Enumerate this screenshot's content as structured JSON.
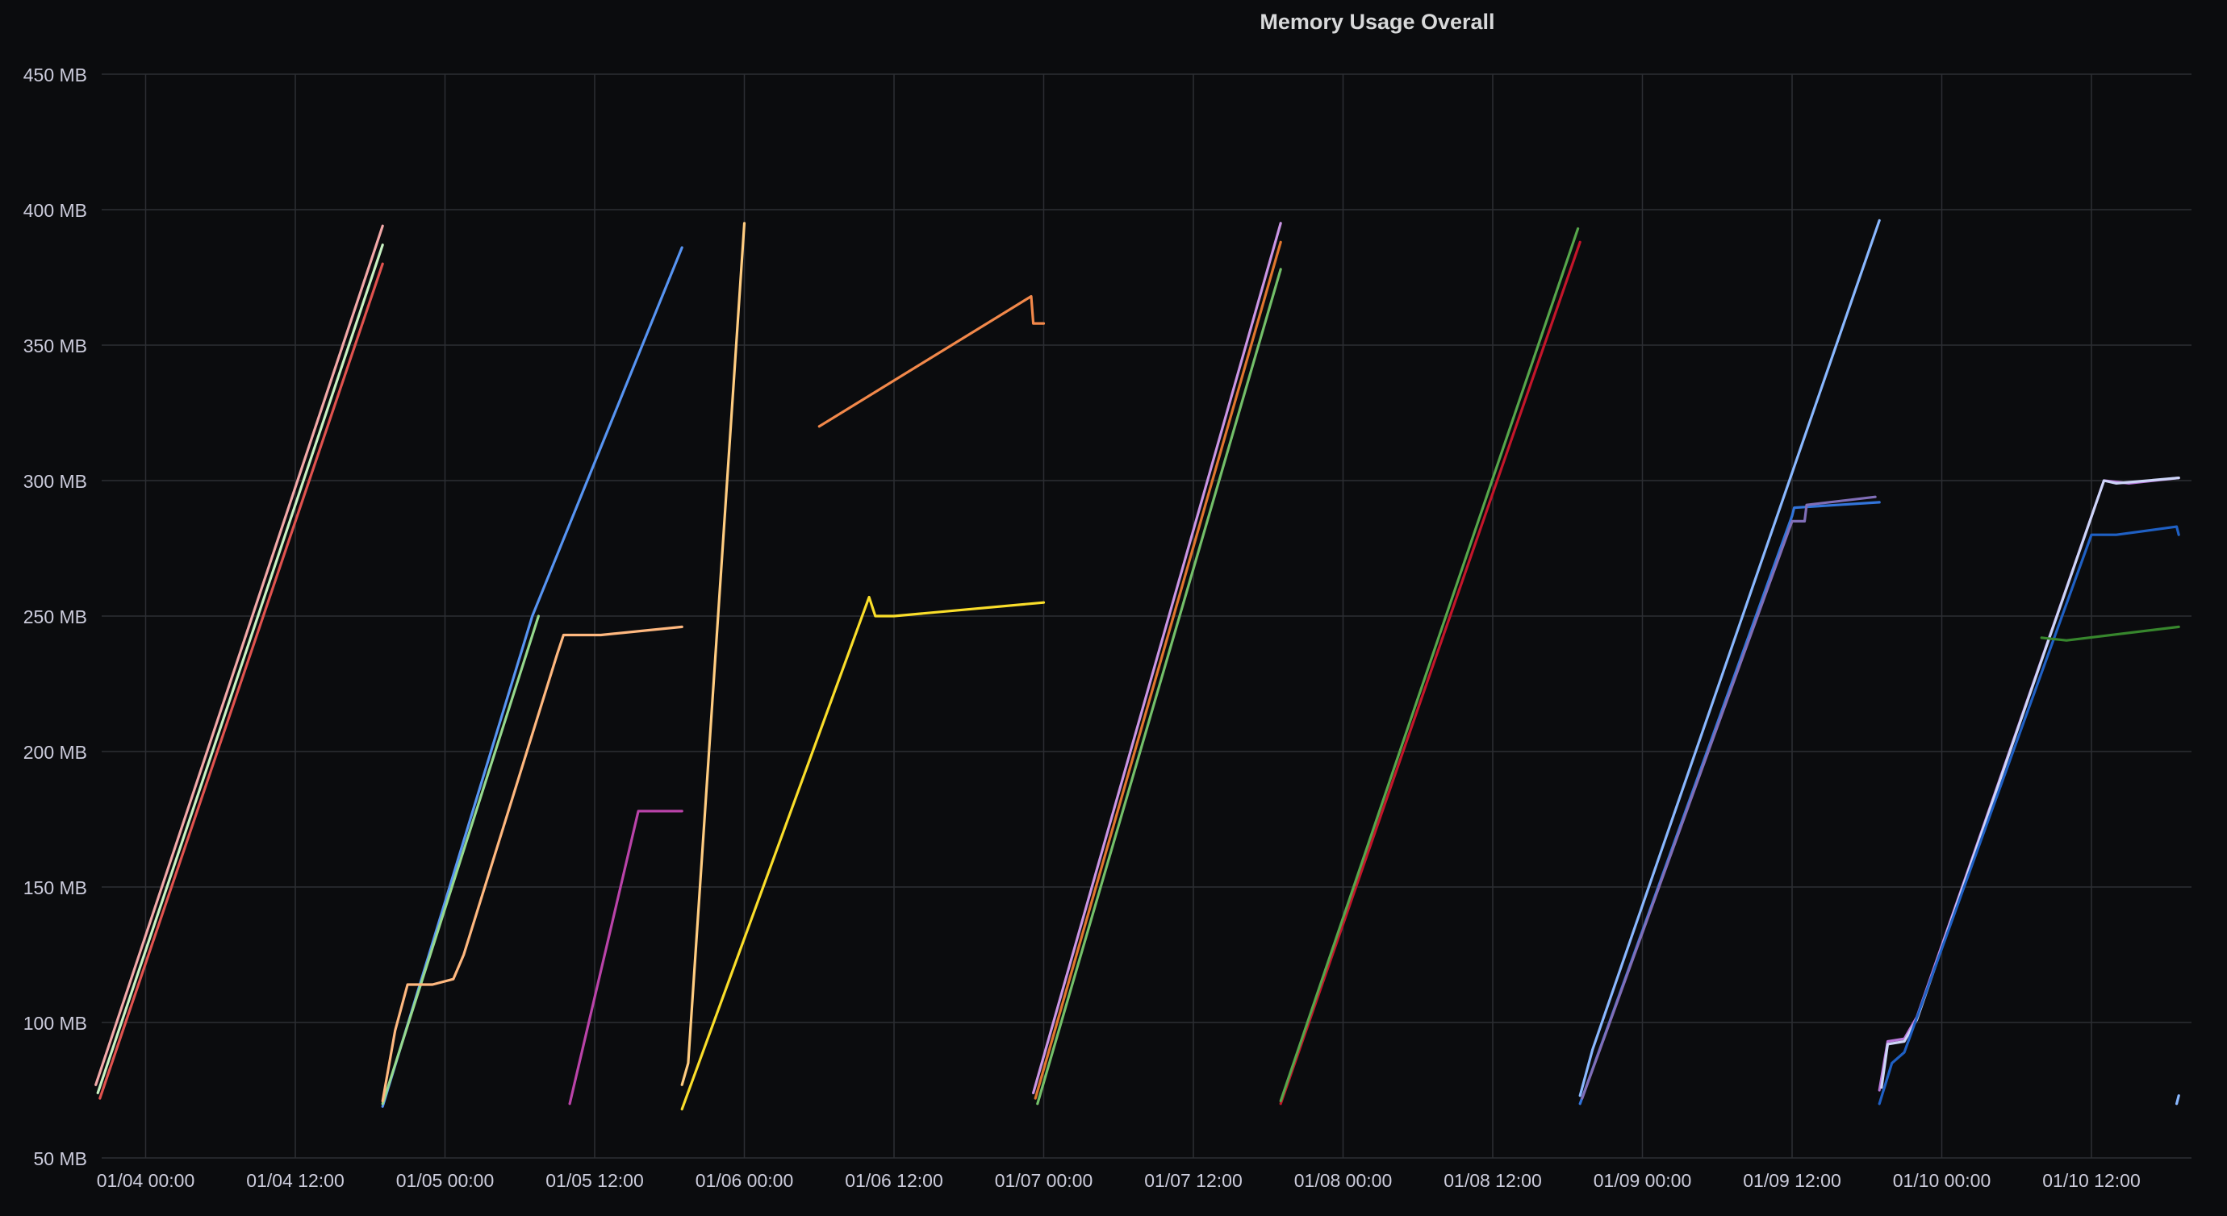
{
  "panel": {
    "title": "Memory Usage Overall"
  },
  "chart_data": {
    "type": "line",
    "title": "Memory Usage Overall",
    "xlabel": "",
    "ylabel": "",
    "y_unit": "MB",
    "ylim": [
      50,
      450
    ],
    "xlim": [
      "01/04 00:00",
      "01/10 12:00"
    ],
    "grid": true,
    "legend": "none",
    "x_tick_labels": [
      "01/04 00:00",
      "01/04 12:00",
      "01/05 00:00",
      "01/05 12:00",
      "01/06 00:00",
      "01/06 12:00",
      "01/07 00:00",
      "01/07 12:00",
      "01/08 00:00",
      "01/08 12:00",
      "01/09 00:00",
      "01/09 12:00",
      "01/10 00:00",
      "01/10 12:00"
    ],
    "y_tick_labels": [
      "50 MB",
      "100 MB",
      "150 MB",
      "200 MB",
      "250 MB",
      "300 MB",
      "350 MB",
      "400 MB",
      "450 MB"
    ],
    "y_ticks": [
      50,
      100,
      150,
      200,
      250,
      300,
      350,
      400,
      450
    ],
    "series": [
      {
        "color": "#f2a8a8",
        "points": [
          [
            "01/03 20:00",
            77
          ],
          [
            "01/04 19:00",
            394
          ]
        ]
      },
      {
        "color": "#c8f2c2",
        "points": [
          [
            "01/03 20:10",
            74
          ],
          [
            "01/04 19:00",
            387
          ]
        ]
      },
      {
        "color": "#e0524e",
        "points": [
          [
            "01/03 20:20",
            72
          ],
          [
            "01/04 19:00",
            380
          ]
        ]
      },
      {
        "color": "#5794f2",
        "points": [
          [
            "01/04 19:00",
            69
          ],
          [
            "01/05 07:00",
            250
          ],
          [
            "01/05 19:00",
            386
          ]
        ]
      },
      {
        "color": "#96d98d",
        "points": [
          [
            "01/04 19:00",
            70
          ],
          [
            "01/05 07:30",
            250
          ]
        ]
      },
      {
        "color": "#ffb87f",
        "points": [
          [
            "01/04 19:00",
            71
          ],
          [
            "01/04 20:00",
            97
          ],
          [
            "01/04 21:00",
            114
          ],
          [
            "01/04 23:00",
            114
          ],
          [
            "01/05 00:40",
            116
          ],
          [
            "01/05 01:30",
            125
          ],
          [
            "01/05 09:00",
            236
          ],
          [
            "01/05 09:30",
            243
          ],
          [
            "01/05 12:30",
            243
          ],
          [
            "01/05 19:00",
            246
          ]
        ]
      },
      {
        "color": "#ba43a9",
        "points": [
          [
            "01/05 10:00",
            70
          ],
          [
            "01/05 15:30",
            178
          ],
          [
            "01/05 16:30",
            178
          ],
          [
            "01/05 19:00",
            178
          ]
        ]
      },
      {
        "color": "#fade2a",
        "points": [
          [
            "01/05 19:00",
            68
          ],
          [
            "01/06 10:00",
            257
          ],
          [
            "01/06 10:30",
            250
          ],
          [
            "01/06 12:00",
            250
          ],
          [
            "01/07 00:00",
            255
          ]
        ]
      },
      {
        "color": "#ffcc80",
        "points": [
          [
            "01/05 19:00",
            77
          ],
          [
            "01/05 19:30",
            85
          ],
          [
            "01/06 00:00",
            395
          ]
        ]
      },
      {
        "color": "#f2884a",
        "points": [
          [
            "01/06 06:00",
            320
          ],
          [
            "01/06 23:00",
            368
          ],
          [
            "01/06 23:10",
            358
          ],
          [
            "01/07 00:00",
            358
          ]
        ]
      },
      {
        "color": "#ca95e5",
        "points": [
          [
            "01/06 23:10",
            74
          ],
          [
            "01/07 19:00",
            395
          ]
        ]
      },
      {
        "color": "#e0752d",
        "points": [
          [
            "01/06 23:20",
            72
          ],
          [
            "01/07 19:00",
            388
          ]
        ]
      },
      {
        "color": "#73bf69",
        "points": [
          [
            "01/06 23:30",
            70
          ],
          [
            "01/07 19:00",
            378
          ]
        ]
      },
      {
        "color": "#c4162a",
        "points": [
          [
            "01/07 19:00",
            70
          ],
          [
            "01/08 19:00",
            388
          ]
        ]
      },
      {
        "color": "#56a64b",
        "points": [
          [
            "01/07 19:00",
            71
          ],
          [
            "01/08 18:50",
            393
          ]
        ]
      },
      {
        "color": "#8ab8ff",
        "points": [
          [
            "01/08 19:00",
            73
          ],
          [
            "01/08 20:00",
            90
          ],
          [
            "01/09 19:00",
            396
          ]
        ]
      },
      {
        "color": "#3274d9",
        "points": [
          [
            "01/08 19:00",
            70
          ],
          [
            "01/09 12:00",
            287
          ],
          [
            "01/09 12:10",
            290
          ],
          [
            "01/09 19:00",
            292
          ]
        ]
      },
      {
        "color": "#806eb7",
        "points": [
          [
            "01/08 19:10",
            72
          ],
          [
            "01/09 12:00",
            285
          ],
          [
            "01/09 13:00",
            285
          ],
          [
            "01/09 13:10",
            291
          ],
          [
            "01/09 18:40",
            294
          ]
        ]
      },
      {
        "color": "#b877d9",
        "points": [
          [
            "01/09 19:00",
            75
          ],
          [
            "01/09 19:40",
            93
          ],
          [
            "01/09 21:00",
            94
          ],
          [
            "01/09 22:00",
            102
          ],
          [
            "01/10 13:00",
            300
          ],
          [
            "01/10 15:00",
            299
          ],
          [
            "01/10 19:00",
            301
          ]
        ]
      },
      {
        "color": "#cdd5f8",
        "points": [
          [
            "01/09 19:10",
            76
          ],
          [
            "01/09 19:40",
            92
          ],
          [
            "01/09 21:00",
            93
          ],
          [
            "01/09 22:00",
            101
          ],
          [
            "01/10 13:00",
            300
          ],
          [
            "01/10 14:00",
            299
          ],
          [
            "01/10 19:00",
            301
          ]
        ]
      },
      {
        "color": "#1f60c4",
        "points": [
          [
            "01/09 19:00",
            70
          ],
          [
            "01/09 20:00",
            85
          ],
          [
            "01/09 21:00",
            89
          ],
          [
            "01/10 12:00",
            280
          ],
          [
            "01/10 14:00",
            280
          ],
          [
            "01/10 18:50",
            283
          ],
          [
            "01/10 19:00",
            280
          ]
        ]
      },
      {
        "color": "#37872d",
        "points": [
          [
            "01/10 08:00",
            242
          ],
          [
            "01/10 10:00",
            241
          ],
          [
            "01/10 19:00",
            246
          ]
        ]
      },
      {
        "color": "#8ab8ff",
        "points": [
          [
            "01/10 18:50",
            70
          ],
          [
            "01/10 19:00",
            73
          ]
        ]
      }
    ]
  }
}
